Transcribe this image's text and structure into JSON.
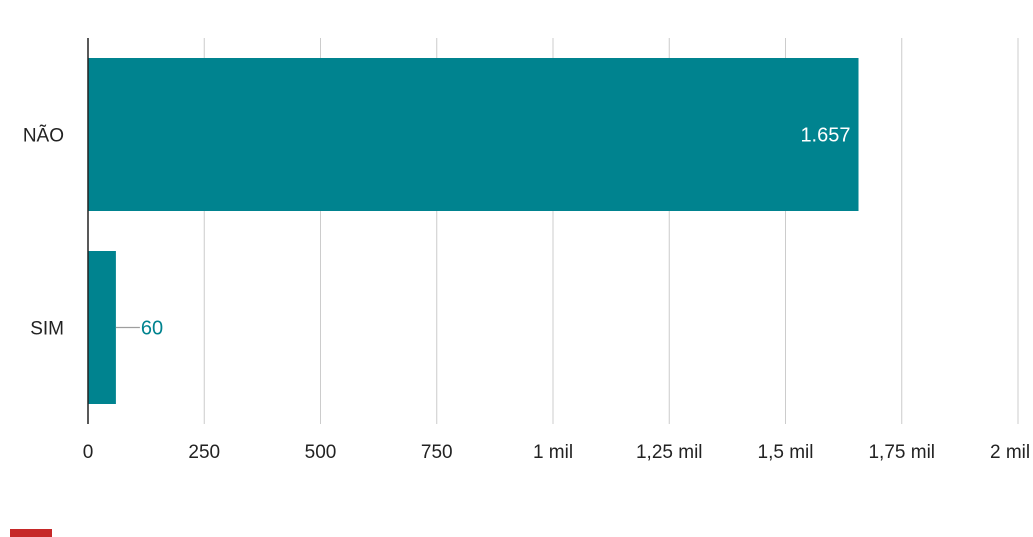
{
  "chart_data": {
    "type": "bar",
    "orientation": "horizontal",
    "categories": [
      "NÃO",
      "SIM"
    ],
    "values": [
      1657,
      60
    ],
    "value_labels": [
      "1.657",
      "60"
    ],
    "xlim": [
      0,
      2000
    ],
    "x_ticks": [
      0,
      250,
      500,
      750,
      1000,
      1250,
      1500,
      1750,
      2000
    ],
    "x_tick_labels": [
      "0",
      "250",
      "500",
      "750",
      "1 mil",
      "1,25 mil",
      "1,5 mil",
      "1,75 mil",
      "2 mil"
    ],
    "grid": true,
    "bar_color": "#00838F",
    "inside_label_color": "#ffffff",
    "outside_label_color": "#00838F",
    "legend_color": "#C62828",
    "title": "",
    "xlabel": "",
    "ylabel": ""
  }
}
